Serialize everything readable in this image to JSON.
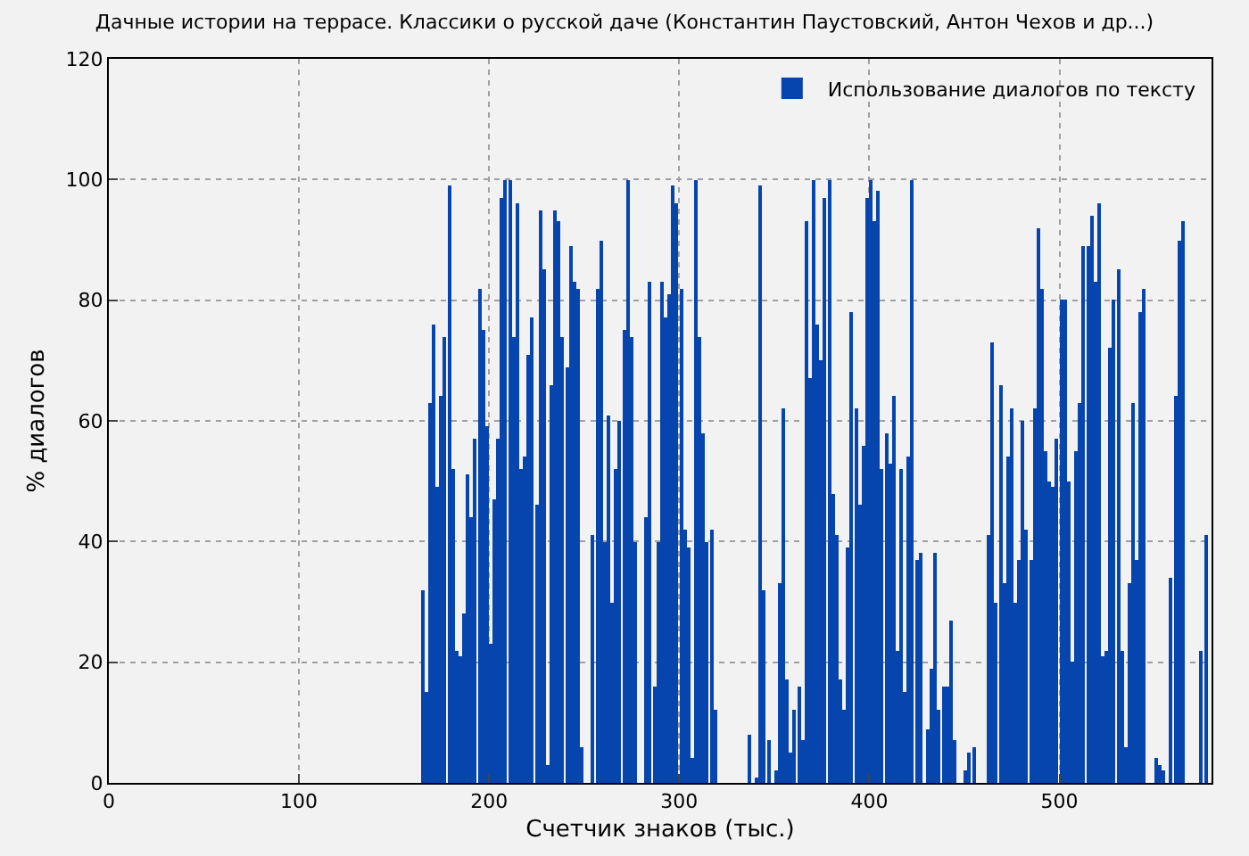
{
  "chart_data": {
    "type": "bar",
    "title": "Дачные истории на террасе. Классики о русской даче (Константин Паустовский, Антон Чехов и др...)",
    "xlabel": "Счетчик знаков (тыс.)",
    "ylabel": "% диалогов",
    "xlim": [
      0,
      580
    ],
    "xticks": [
      0,
      100,
      200,
      300,
      400,
      500
    ],
    "ylim": [
      0,
      120
    ],
    "yticks": [
      0,
      20,
      40,
      60,
      80,
      100,
      120
    ],
    "grid": true,
    "legend": "top right",
    "series": [
      {
        "name": "Использование диалогов по тексту",
        "color": "#0645ad",
        "x": [
          165,
          167,
          169,
          171,
          173,
          175,
          177,
          179,
          181,
          183,
          185,
          187,
          189,
          191,
          193,
          195,
          197,
          199,
          201,
          203,
          205,
          207,
          209,
          211,
          213,
          215,
          217,
          219,
          221,
          223,
          225,
          227,
          229,
          231,
          233,
          235,
          237,
          239,
          241,
          243,
          245,
          247,
          249,
          255,
          257,
          259,
          261,
          263,
          265,
          267,
          269,
          271,
          273,
          275,
          277,
          283,
          285,
          287,
          289,
          291,
          293,
          295,
          297,
          299,
          301,
          303,
          305,
          307,
          309,
          311,
          313,
          315,
          317,
          319,
          337,
          341,
          343,
          345,
          347,
          351,
          353,
          355,
          357,
          359,
          361,
          363,
          365,
          367,
          369,
          371,
          373,
          375,
          377,
          379,
          381,
          383,
          385,
          387,
          389,
          391,
          393,
          395,
          397,
          399,
          401,
          403,
          405,
          407,
          409,
          411,
          413,
          415,
          417,
          419,
          421,
          423,
          425,
          427,
          431,
          433,
          435,
          437,
          439,
          441,
          443,
          445,
          451,
          453,
          455,
          463,
          465,
          467,
          469,
          471,
          473,
          475,
          477,
          479,
          481,
          483,
          485,
          487,
          489,
          491,
          493,
          495,
          497,
          499,
          501,
          503,
          505,
          507,
          509,
          511,
          513,
          515,
          517,
          519,
          521,
          523,
          525,
          527,
          529,
          531,
          533,
          535,
          537,
          539,
          541,
          543,
          545,
          551,
          553,
          555,
          559,
          561,
          563,
          565,
          575,
          577
        ],
        "values": [
          32,
          15,
          63,
          76,
          49,
          64,
          74,
          99,
          52,
          22,
          21,
          28,
          51,
          44,
          57,
          82,
          75,
          59,
          23,
          47,
          57,
          97,
          100,
          100,
          74,
          96,
          52,
          54,
          71,
          77,
          46,
          95,
          85,
          3,
          66,
          95,
          93,
          74,
          69,
          89,
          83,
          82,
          6,
          41,
          82,
          90,
          40,
          61,
          30,
          52,
          60,
          75,
          100,
          74,
          40,
          44,
          83,
          16,
          40,
          83,
          77,
          81,
          99,
          96,
          82,
          42,
          39,
          4,
          100,
          74,
          58,
          40,
          42,
          12,
          8,
          1,
          99,
          32,
          7,
          2,
          33,
          62,
          17,
          5,
          12,
          16,
          7,
          93,
          67,
          100,
          76,
          70,
          97,
          100,
          48,
          41,
          17,
          12,
          39,
          78,
          62,
          46,
          56,
          97,
          100,
          93,
          98,
          52,
          58,
          53,
          64,
          22,
          52,
          15,
          54,
          100,
          37,
          38,
          9,
          19,
          38,
          12,
          16,
          16,
          27,
          7,
          2,
          5,
          6,
          41,
          73,
          30,
          66,
          33,
          54,
          62,
          30,
          37,
          60,
          42,
          37,
          62,
          92,
          82,
          55,
          50,
          49,
          57,
          80,
          80,
          50,
          20,
          55,
          63,
          89,
          89,
          94,
          83,
          96,
          21,
          22,
          72,
          80,
          85,
          22,
          6,
          33,
          63,
          37,
          78,
          82,
          4,
          3,
          2,
          34,
          64,
          90,
          93,
          22,
          41
        ]
      }
    ]
  }
}
